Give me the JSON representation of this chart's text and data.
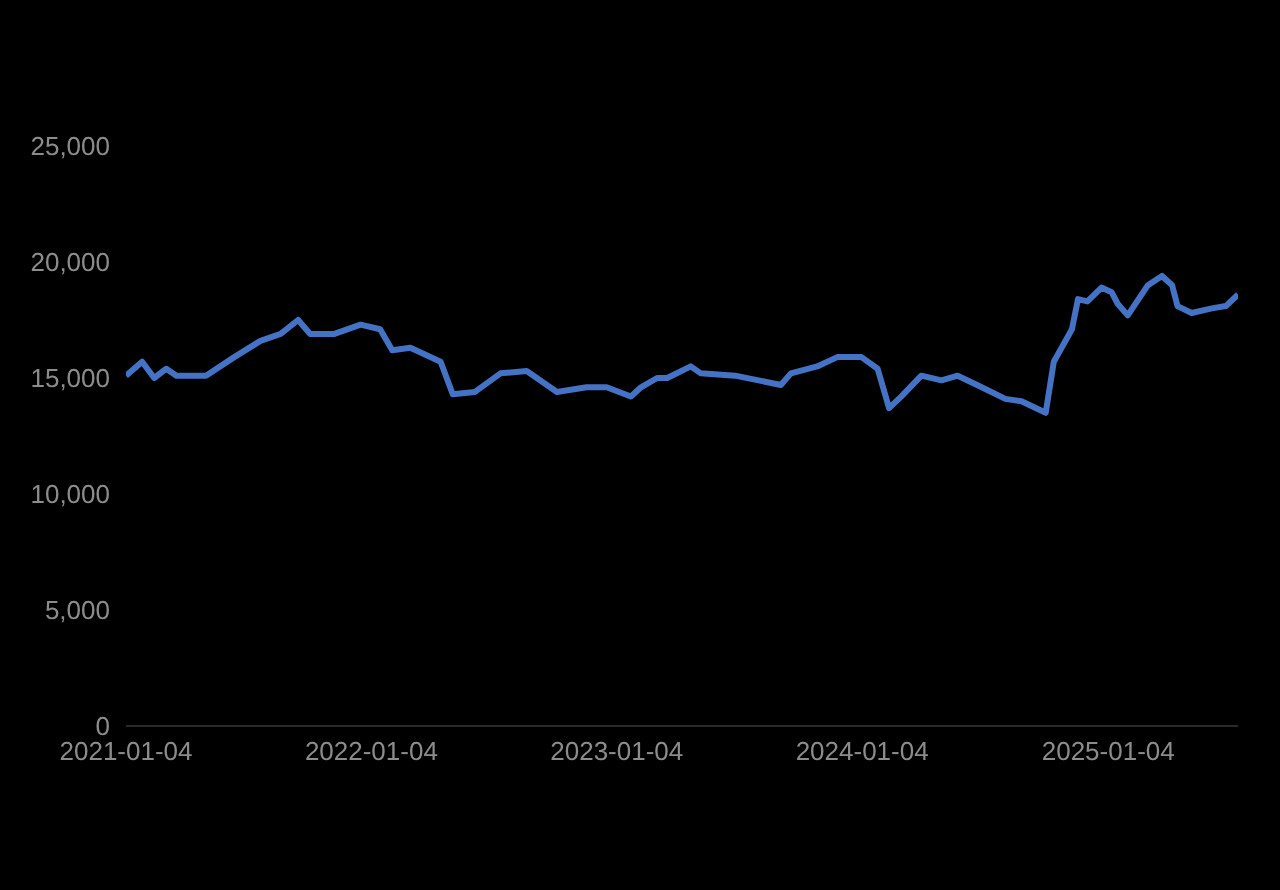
{
  "chart_data": {
    "type": "line",
    "color": "#4472c4",
    "x": [
      "2021-01-04",
      "2021-01-28",
      "2021-02-15",
      "2021-03-05",
      "2021-03-20",
      "2021-05-03",
      "2021-06-14",
      "2021-07-23",
      "2021-08-22",
      "2021-09-17",
      "2021-10-05",
      "2021-11-10",
      "2021-12-19",
      "2022-01-17",
      "2022-02-04",
      "2022-03-03",
      "2022-04-17",
      "2022-05-05",
      "2022-06-07",
      "2022-07-15",
      "2022-08-23",
      "2022-10-07",
      "2022-11-20",
      "2022-12-20",
      "2023-01-25",
      "2023-02-09",
      "2023-03-05",
      "2023-03-20",
      "2023-04-24",
      "2023-05-09",
      "2023-06-29",
      "2023-09-05",
      "2023-09-20",
      "2023-10-29",
      "2023-11-28",
      "2024-01-03",
      "2024-01-27",
      "2024-02-13",
      "2024-03-02",
      "2024-04-01",
      "2024-05-01",
      "2024-05-25",
      "2024-06-23",
      "2024-08-04",
      "2024-08-28",
      "2024-10-03",
      "2024-10-15",
      "2024-11-11",
      "2024-11-20",
      "2024-12-04",
      "2024-12-25",
      "2025-01-09",
      "2025-01-18",
      "2025-02-02",
      "2025-03-04",
      "2025-03-25",
      "2025-04-09",
      "2025-04-17",
      "2025-05-08",
      "2025-06-07",
      "2025-06-28",
      "2025-07-16"
    ],
    "values": [
      15100,
      15700,
      15000,
      15400,
      15100,
      15100,
      15900,
      16600,
      16900,
      17500,
      16900,
      16900,
      17300,
      17100,
      16200,
      16300,
      15700,
      14300,
      14400,
      15200,
      15300,
      14400,
      14600,
      14600,
      14200,
      14600,
      15000,
      15000,
      15500,
      15200,
      15100,
      14700,
      15200,
      15500,
      15900,
      15900,
      15400,
      13700,
      14200,
      15100,
      14900,
      15100,
      14700,
      14100,
      14000,
      13500,
      15700,
      17100,
      18400,
      18300,
      18900,
      18700,
      18200,
      17700,
      19000,
      19400,
      19000,
      18100,
      17800,
      18000,
      18100,
      18600
    ],
    "xlim": [
      "2021-01-04",
      "2025-07-16"
    ],
    "ylim": [
      0,
      25000
    ],
    "yticks": [
      0,
      {
        "value": 5000,
        "label": "5,000"
      },
      {
        "value": 10000,
        "label": "10,000"
      },
      {
        "value": 15000,
        "label": "15,000"
      },
      {
        "value": 20000,
        "label": "20,000"
      },
      {
        "value": 25000,
        "label": "25,000"
      }
    ],
    "xticks": [
      "2021-01-04",
      "2022-01-04",
      "2023-01-04",
      "2024-01-04",
      "2025-01-04"
    ]
  }
}
